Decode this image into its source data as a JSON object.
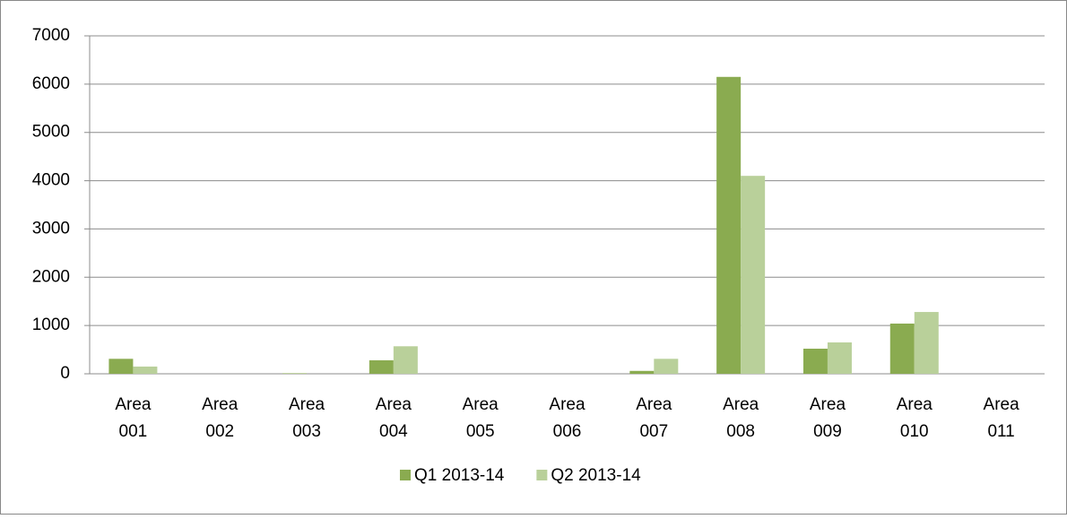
{
  "chart_data": {
    "type": "bar",
    "categories": [
      "Area 001",
      "Area 002",
      "Area 003",
      "Area 004",
      "Area 005",
      "Area 006",
      "Area 007",
      "Area 008",
      "Area 009",
      "Area 010",
      "Area 011"
    ],
    "series": [
      {
        "name": "Q1 2013-14",
        "color": "#8aab50",
        "values": [
          310,
          0,
          10,
          280,
          0,
          0,
          60,
          6150,
          520,
          1040,
          0
        ]
      },
      {
        "name": "Q2 2013-14",
        "color": "#b9d09a",
        "values": [
          150,
          0,
          0,
          570,
          0,
          0,
          310,
          4100,
          650,
          1280,
          0
        ]
      }
    ],
    "ylim": [
      0,
      7000
    ],
    "yticks": [
      0,
      1000,
      2000,
      3000,
      4000,
      5000,
      6000,
      7000
    ],
    "grid": true,
    "legend": "bottom"
  }
}
